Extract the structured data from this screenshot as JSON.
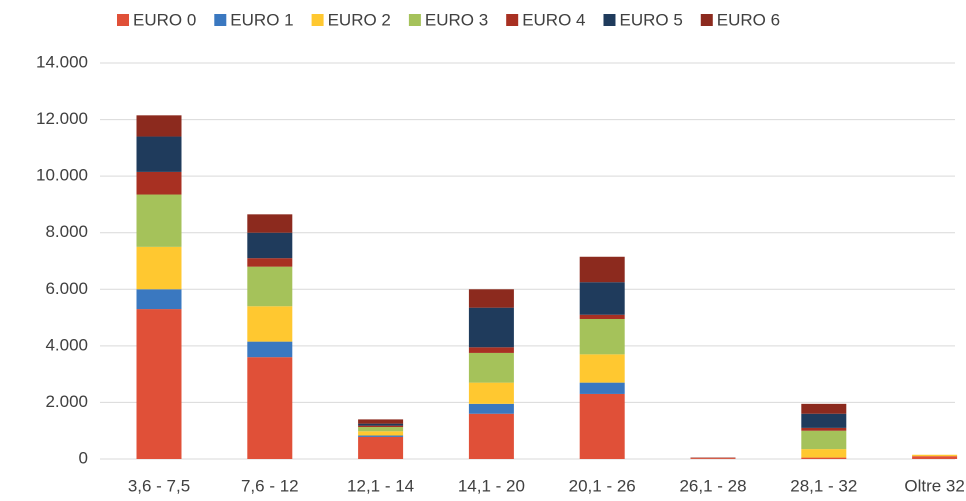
{
  "chart_data": {
    "type": "stacked_bar",
    "categories": [
      "3,6 - 7,5",
      "7,6 - 12",
      "12,1 - 14",
      "14,1 - 20",
      "20,1 - 26",
      "26,1 - 28",
      "28,1 - 32",
      "Oltre 32"
    ],
    "series": [
      {
        "name": "EURO 0",
        "color": "#e05038",
        "values": [
          5300,
          3600,
          780,
          1600,
          2300,
          30,
          50,
          100
        ]
      },
      {
        "name": "EURO 1",
        "color": "#3a78c0",
        "values": [
          700,
          550,
          50,
          350,
          400,
          0,
          0,
          0
        ]
      },
      {
        "name": "EURO 2",
        "color": "#ffc830",
        "values": [
          1500,
          1250,
          150,
          750,
          1000,
          0,
          300,
          50
        ]
      },
      {
        "name": "EURO 3",
        "color": "#a5c25a",
        "values": [
          1850,
          1400,
          150,
          1050,
          1250,
          0,
          650,
          0
        ]
      },
      {
        "name": "EURO 4",
        "color": "#a83022",
        "values": [
          800,
          300,
          50,
          200,
          150,
          0,
          100,
          0
        ]
      },
      {
        "name": "EURO 5",
        "color": "#1f3b5c",
        "values": [
          1250,
          900,
          70,
          1400,
          1150,
          0,
          500,
          0
        ]
      },
      {
        "name": "EURO 6",
        "color": "#8c2a1e",
        "values": [
          750,
          650,
          150,
          650,
          900,
          20,
          350,
          0
        ]
      }
    ],
    "ylim": [
      0,
      14000
    ],
    "yticks": [
      0,
      {
        "value": 2000,
        "label": "2.000"
      },
      {
        "value": 4000,
        "label": "4.000"
      },
      {
        "value": 6000,
        "label": "6.000"
      },
      {
        "value": 8000,
        "label": "8.000"
      },
      {
        "value": 10000,
        "label": "10.000"
      },
      {
        "value": 12000,
        "label": "12.000"
      },
      {
        "value": 14000,
        "label": "14.000"
      }
    ],
    "grid": true,
    "legend": "top"
  }
}
